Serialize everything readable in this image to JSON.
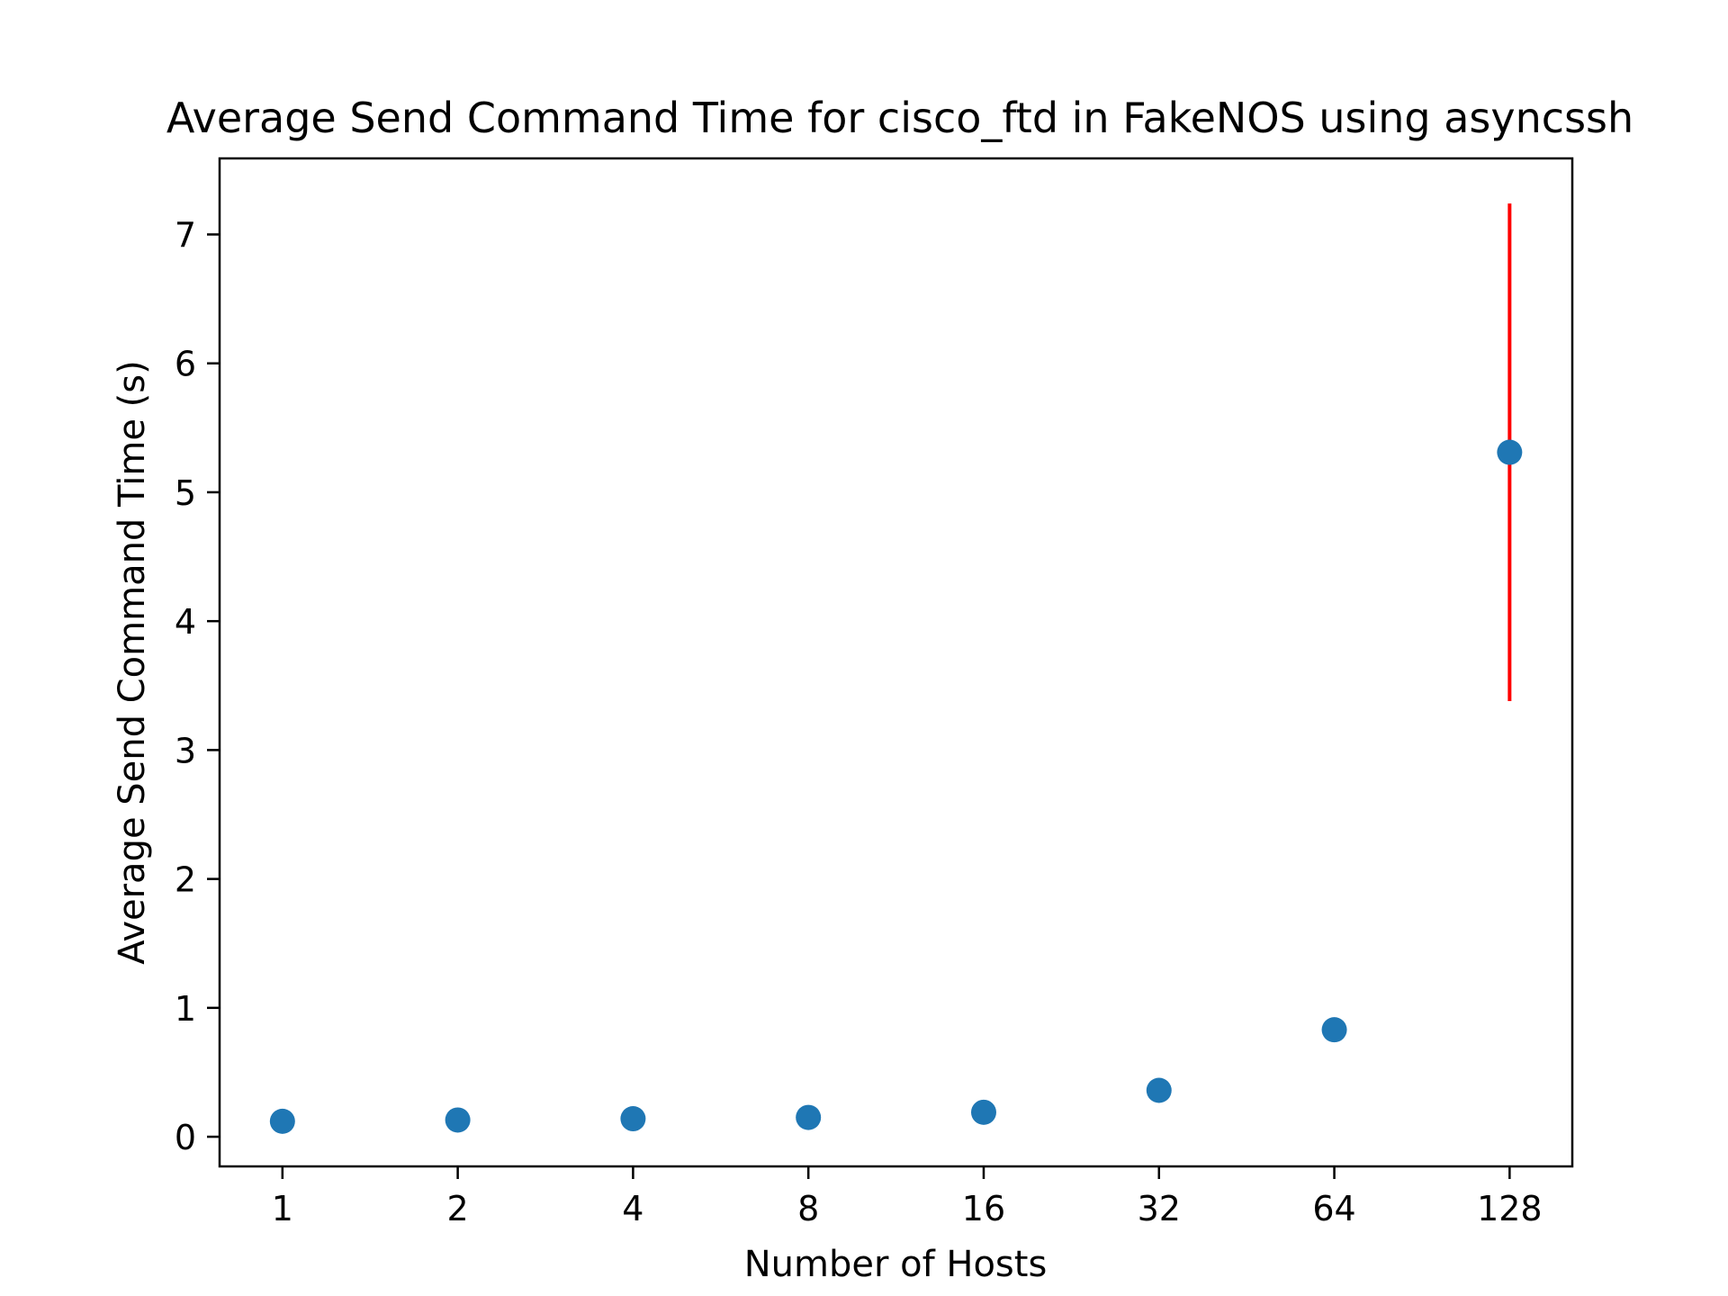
{
  "chart_data": {
    "type": "scatter",
    "title": "Average Send Command Time for cisco_ftd in FakeNOS using asyncssh",
    "xlabel": "Number of Hosts",
    "ylabel": "Average Send Command Time (s)",
    "x_scale": "log2",
    "x": [
      1,
      2,
      4,
      8,
      16,
      32,
      64,
      128
    ],
    "x_tick_labels": [
      "1",
      "2",
      "4",
      "8",
      "16",
      "32",
      "64",
      "128"
    ],
    "series": [
      {
        "values": [
          0.12,
          0.13,
          0.14,
          0.15,
          0.19,
          0.36,
          0.83,
          5.31
        ],
        "error_low": [
          null,
          null,
          null,
          null,
          null,
          null,
          null,
          3.38
        ],
        "error_high": [
          null,
          null,
          null,
          null,
          null,
          null,
          null,
          7.24
        ],
        "color": "#1f77b4",
        "error_color": "#ff0000"
      }
    ],
    "y_ticks": [
      0,
      1,
      2,
      3,
      4,
      5,
      6,
      7
    ],
    "ylim": [
      -0.23,
      7.59
    ],
    "xlim": [
      0.78,
      164
    ],
    "grid": false,
    "legend": "none"
  }
}
